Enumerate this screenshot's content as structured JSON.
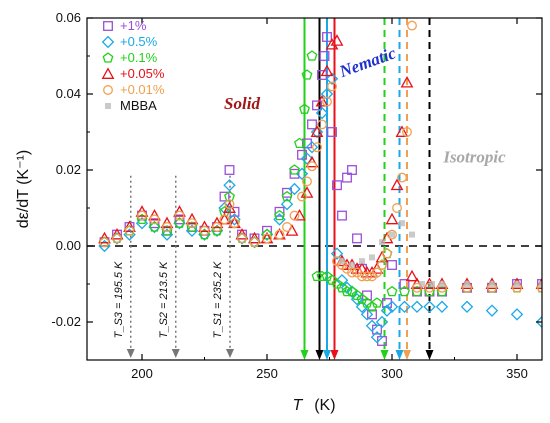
{
  "chart_data": {
    "type": "scatter",
    "xlabel_symbol": "T",
    "xlabel_unit": "(K)",
    "ylabel": "dε/dT (K⁻¹)",
    "xlim": [
      178,
      360
    ],
    "ylim": [
      -0.03,
      0.06
    ],
    "xticks": [
      200,
      250,
      300,
      350
    ],
    "yticks": [
      -0.02,
      0.0,
      0.02,
      0.04,
      0.06
    ],
    "ytick_labels": [
      "-0.02",
      "0.00",
      "0.02",
      "0.04",
      "0.06"
    ],
    "legend_placement": "top-left",
    "series": [
      {
        "name": "+1%",
        "marker": "square",
        "color": "#9b4fd8",
        "x": [
          185,
          190,
          195,
          200,
          205,
          210,
          215,
          220,
          225,
          230,
          233,
          235,
          237,
          240,
          245,
          250,
          255,
          258,
          261,
          264,
          266,
          268,
          270,
          272,
          273,
          274,
          276,
          278,
          280,
          282,
          284,
          286,
          288,
          290,
          292,
          294,
          296,
          298,
          300,
          305,
          310,
          315,
          320,
          330,
          340,
          350,
          360
        ],
        "y": [
          0.001,
          0.003,
          0.005,
          0.008,
          0.006,
          0.004,
          0.007,
          0.005,
          0.004,
          0.005,
          0.013,
          0.02,
          0.009,
          0.003,
          0.002,
          0.004,
          0.009,
          0.014,
          0.019,
          0.024,
          0.027,
          0.032,
          0.037,
          0.045,
          0.05,
          0.055,
          0.03,
          0.016,
          0.008,
          0.018,
          0.02,
          0.002,
          -0.006,
          -0.013,
          -0.018,
          -0.022,
          -0.025,
          -0.015,
          -0.005,
          -0.01,
          -0.012,
          -0.012,
          -0.012,
          -0.011,
          -0.011,
          -0.01,
          -0.01
        ]
      },
      {
        "name": "+0.5%",
        "marker": "diamond",
        "color": "#1aa9e6",
        "x": [
          185,
          190,
          195,
          200,
          205,
          210,
          215,
          220,
          225,
          230,
          233,
          235,
          237,
          240,
          245,
          250,
          255,
          258,
          261,
          264,
          266,
          268,
          270,
          272,
          274,
          276,
          278,
          280,
          282,
          284,
          286,
          288,
          290,
          292,
          294,
          296,
          298,
          300,
          305,
          310,
          315,
          320,
          330,
          340,
          350,
          360
        ],
        "y": [
          0.0,
          0.002,
          0.003,
          0.006,
          0.005,
          0.003,
          0.006,
          0.004,
          0.003,
          0.004,
          0.01,
          0.016,
          0.007,
          0.002,
          0.001,
          0.003,
          0.007,
          0.011,
          0.015,
          0.019,
          0.023,
          0.026,
          0.03,
          0.035,
          0.04,
          0.044,
          -0.002,
          -0.009,
          -0.011,
          -0.012,
          -0.014,
          -0.016,
          -0.018,
          -0.021,
          -0.024,
          -0.02,
          -0.017,
          -0.016,
          -0.016,
          -0.016,
          -0.016,
          -0.016,
          -0.016,
          -0.017,
          -0.018,
          -0.02
        ]
      },
      {
        "name": "+0.1%",
        "marker": "pentagon",
        "color": "#22d11a",
        "x": [
          185,
          190,
          195,
          200,
          205,
          210,
          215,
          220,
          225,
          230,
          233,
          235,
          237,
          240,
          245,
          250,
          255,
          258,
          261,
          263,
          265,
          266,
          268,
          270,
          272,
          274,
          276,
          278,
          280,
          282,
          284,
          286,
          288,
          290,
          292,
          294,
          296,
          298,
          300,
          305,
          310,
          315,
          320,
          330,
          340,
          350,
          360
        ],
        "y": [
          0.001,
          0.002,
          0.004,
          0.007,
          0.005,
          0.004,
          0.006,
          0.005,
          0.003,
          0.004,
          0.009,
          0.013,
          0.006,
          0.002,
          0.001,
          0.003,
          0.008,
          0.013,
          0.02,
          0.027,
          0.036,
          0.045,
          0.05,
          -0.008,
          -0.008,
          -0.008,
          -0.009,
          -0.01,
          -0.011,
          -0.012,
          -0.012,
          -0.013,
          -0.014,
          -0.015,
          -0.016,
          -0.015,
          -0.005,
          -0.002,
          -0.012,
          -0.012,
          -0.012,
          -0.012,
          -0.012,
          -0.011,
          -0.011,
          -0.011,
          -0.011
        ]
      },
      {
        "name": "+0.05%",
        "marker": "triangle",
        "color": "#e8111a",
        "x": [
          185,
          190,
          195,
          200,
          205,
          210,
          215,
          220,
          225,
          230,
          233,
          235,
          237,
          240,
          245,
          250,
          255,
          260,
          263,
          266,
          268,
          270,
          272,
          274,
          276,
          278,
          280,
          282,
          284,
          286,
          288,
          290,
          292,
          294,
          296,
          298,
          300,
          302,
          304,
          306,
          308,
          310,
          315,
          320,
          330,
          340,
          350,
          360
        ],
        "y": [
          0.002,
          0.003,
          0.005,
          0.009,
          0.008,
          0.006,
          0.009,
          0.007,
          0.005,
          0.006,
          0.007,
          0.01,
          0.006,
          0.003,
          0.002,
          0.002,
          0.003,
          0.004,
          0.008,
          0.014,
          0.022,
          0.03,
          0.038,
          0.046,
          0.053,
          0.054,
          -0.004,
          -0.005,
          -0.005,
          -0.006,
          -0.006,
          -0.007,
          -0.007,
          -0.006,
          -0.003,
          0.002,
          0.007,
          0.016,
          0.03,
          0.043,
          -0.008,
          -0.01,
          -0.01,
          -0.01,
          -0.01,
          -0.01,
          -0.01,
          -0.01
        ]
      },
      {
        "name": "+0.01%",
        "marker": "circle",
        "color": "#f0a050",
        "x": [
          185,
          190,
          195,
          200,
          205,
          210,
          215,
          220,
          225,
          230,
          233,
          235,
          237,
          240,
          245,
          250,
          255,
          258,
          261,
          264,
          266,
          268,
          270,
          272,
          274,
          276,
          278,
          280,
          282,
          284,
          286,
          288,
          290,
          292,
          294,
          296,
          298,
          300,
          302,
          304,
          306,
          308,
          310,
          315,
          320,
          330,
          340,
          350,
          360
        ],
        "y": [
          0.001,
          0.002,
          0.004,
          0.008,
          0.007,
          0.005,
          0.008,
          0.006,
          0.004,
          0.005,
          0.007,
          0.011,
          0.006,
          0.002,
          0.001,
          0.002,
          0.003,
          0.005,
          0.008,
          0.013,
          0.017,
          0.021,
          0.026,
          0.032,
          0.038,
          0.042,
          -0.004,
          -0.005,
          -0.006,
          -0.007,
          -0.007,
          -0.008,
          -0.008,
          -0.008,
          -0.007,
          -0.005,
          -0.002,
          0.003,
          0.01,
          0.018,
          0.03,
          0.058,
          -0.011,
          -0.011,
          -0.011,
          -0.011,
          -0.011,
          -0.011,
          -0.011
        ]
      },
      {
        "name": "MBBA",
        "marker": "cross",
        "color": "#b8b8b8",
        "x": [
          280,
          284,
          288,
          292,
          296,
          300,
          304,
          308,
          312,
          316,
          320,
          330,
          340,
          350,
          360
        ],
        "y": [
          -0.004,
          -0.005,
          -0.004,
          -0.003,
          0.001,
          0.003,
          0.006,
          0.003,
          -0.01,
          -0.01,
          -0.01,
          -0.01,
          -0.01,
          -0.01,
          -0.01
        ]
      }
    ],
    "transition_arrows": [
      {
        "x": 265,
        "color": "#22d11a",
        "style": "solid"
      },
      {
        "x": 271,
        "color": "#000000",
        "style": "solid"
      },
      {
        "x": 274,
        "color": "#1aa9e6",
        "style": "solid"
      },
      {
        "x": 277,
        "color": "#e8111a",
        "style": "solid"
      },
      {
        "x": 297,
        "color": "#22d11a",
        "style": "dash"
      },
      {
        "x": 303,
        "color": "#1aa9e6",
        "style": "dash"
      },
      {
        "x": 306,
        "color": "#f0a050",
        "style": "dash"
      },
      {
        "x": 315,
        "color": "#000000",
        "style": "dash"
      }
    ],
    "solid_transitions": [
      {
        "x": 195.5,
        "label": "T_S3 = 195.5 K"
      },
      {
        "x": 213.5,
        "label": "T_S2 = 213.5 K"
      },
      {
        "x": 235.2,
        "label": "T_S1 = 235.2 K"
      }
    ],
    "regions": [
      {
        "label": "Solid",
        "x": 240,
        "y": 0.036,
        "color": "#a01818"
      },
      {
        "label": "Nematic",
        "x": 291,
        "y": 0.047,
        "color": "#2030d0"
      },
      {
        "label": "Isotropic",
        "x": 333,
        "y": 0.022,
        "color": "#a8a8a8"
      }
    ],
    "zero_line": 0.0
  }
}
